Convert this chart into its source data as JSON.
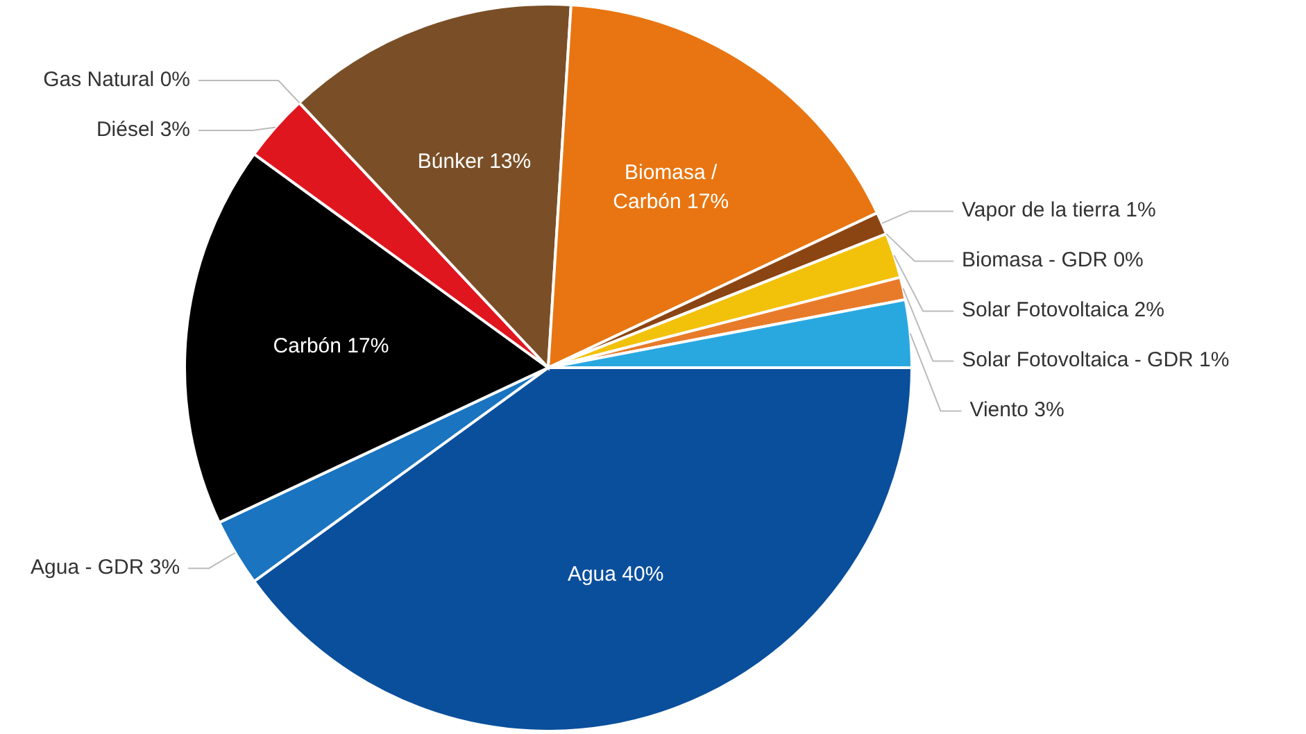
{
  "chart_data": {
    "type": "pie",
    "categories": [
      "Agua",
      "Agua - GDR",
      "Carbón",
      "Diésel",
      "Gas Natural",
      "Búnker",
      "Biomasa / Carbón",
      "Vapor de la tierra",
      "Biomasa - GDR",
      "Solar Fotovoltaica",
      "Solar Fotovoltaica - GDR",
      "Viento"
    ],
    "values": [
      40,
      3,
      17,
      3,
      0,
      13,
      17,
      1,
      0,
      2,
      1,
      3
    ],
    "colors": [
      "#0a4f9c",
      "#1a74c0",
      "#000000",
      "#e0161f",
      "#9e9e9e",
      "#7a4f27",
      "#e87511",
      "#8b4513",
      "#6b3a1a",
      "#f2c10a",
      "#e87b2a",
      "#29a8e0"
    ],
    "value_labels": [
      "40%",
      "3%",
      "17%",
      "3%",
      "0%",
      "13%",
      "17%",
      "1%",
      "0%",
      "2%",
      "1%",
      "3%"
    ]
  }
}
